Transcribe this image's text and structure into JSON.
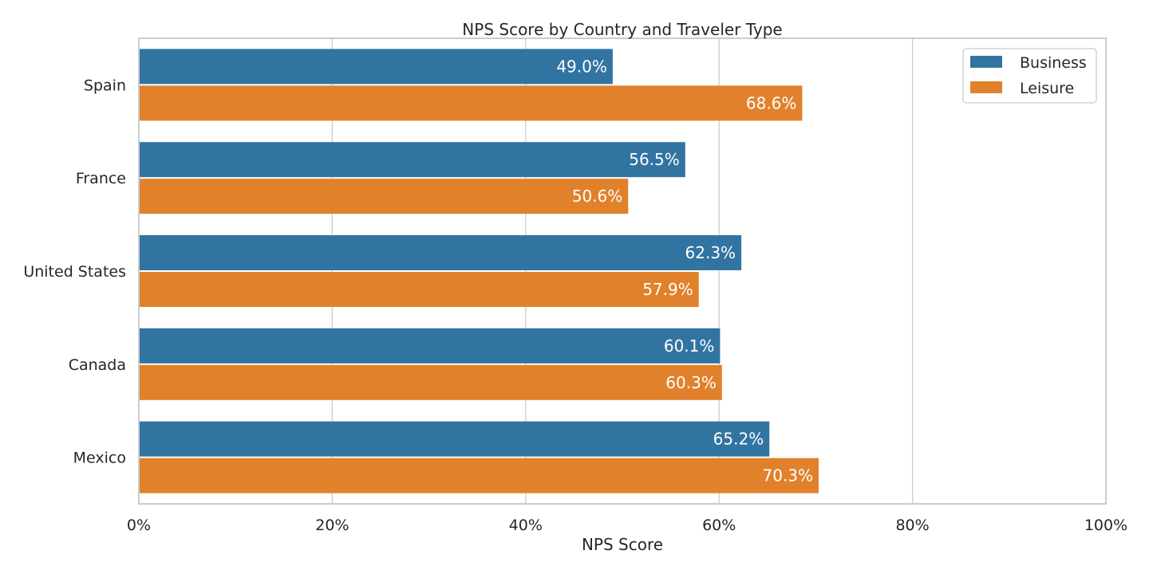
{
  "chart_data": {
    "type": "bar",
    "orientation": "horizontal",
    "title": "NPS Score by Country and Traveler Type",
    "xlabel": "NPS Score",
    "ylabel": "",
    "xlim": [
      0,
      100
    ],
    "x_ticks": [
      0,
      20,
      40,
      60,
      80,
      100
    ],
    "x_tick_labels": [
      "0%",
      "20%",
      "40%",
      "60%",
      "80%",
      "100%"
    ],
    "categories": [
      "Spain",
      "France",
      "United States",
      "Canada",
      "Mexico"
    ],
    "series": [
      {
        "name": "Business",
        "color": "#3274a1",
        "values": [
          49.0,
          56.5,
          62.3,
          60.1,
          65.2
        ],
        "labels": [
          "49.0%",
          "56.5%",
          "62.3%",
          "60.1%",
          "65.2%"
        ]
      },
      {
        "name": "Leisure",
        "color": "#e1812c",
        "values": [
          68.6,
          50.6,
          57.9,
          60.3,
          70.3
        ],
        "labels": [
          "68.6%",
          "50.6%",
          "57.9%",
          "60.3%",
          "70.3%"
        ]
      }
    ],
    "grid": true,
    "legend": {
      "placement": "top-right"
    }
  }
}
